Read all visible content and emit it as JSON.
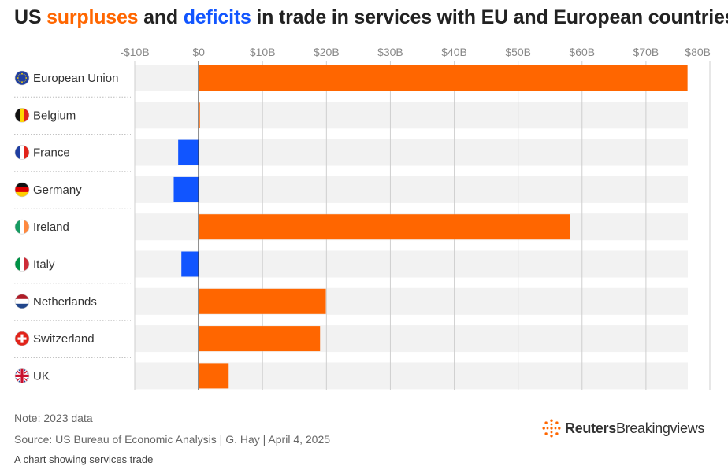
{
  "title": {
    "prefix": "US ",
    "surplus_word": "surpluses",
    "middle": " and ",
    "deficit_word": "deficits",
    "suffix": " in trade in services with EU and European countries"
  },
  "colors": {
    "surplus": "#ff6600",
    "deficit": "#1155ff",
    "row_background": "#f2f2f2",
    "grid": "#cfcfcf",
    "zero_line": "#333333"
  },
  "chart_data": {
    "type": "bar",
    "orientation": "horizontal",
    "title": "US surpluses and deficits in trade in services with EU and European countries",
    "xlim": [
      -10,
      80
    ],
    "x_ticks": [
      -10,
      0,
      10,
      20,
      30,
      40,
      50,
      60,
      70,
      80
    ],
    "x_tick_labels": [
      "-$10B",
      "$0",
      "$10B",
      "$20B",
      "$30B",
      "$40B",
      "$50B",
      "$60B",
      "$70B",
      "$80B"
    ],
    "unit": "$B",
    "categories": [
      "European Union",
      "Belgium",
      "France",
      "Germany",
      "Ireland",
      "Italy",
      "Netherlands",
      "Switzerland",
      "UK"
    ],
    "flag_icons": [
      "eu-flag-icon",
      "belgium-flag-icon",
      "france-flag-icon",
      "germany-flag-icon",
      "ireland-flag-icon",
      "italy-flag-icon",
      "netherlands-flag-icon",
      "switzerland-flag-icon",
      "uk-flag-icon"
    ],
    "values": [
      76.5,
      0.2,
      -3.2,
      -3.9,
      58.1,
      -2.7,
      19.9,
      19.0,
      4.7
    ],
    "legend": "surplus = orange, deficit = blue"
  },
  "footer": {
    "note": "Note: 2023 data",
    "source": "Source: US Bureau of Economic Analysis | G. Hay | April 4, 2025",
    "alt_text": "A chart showing services trade"
  },
  "brand": {
    "strong": "Reuters",
    "light": "Breakingviews",
    "icon": "reuters-logo-icon"
  }
}
